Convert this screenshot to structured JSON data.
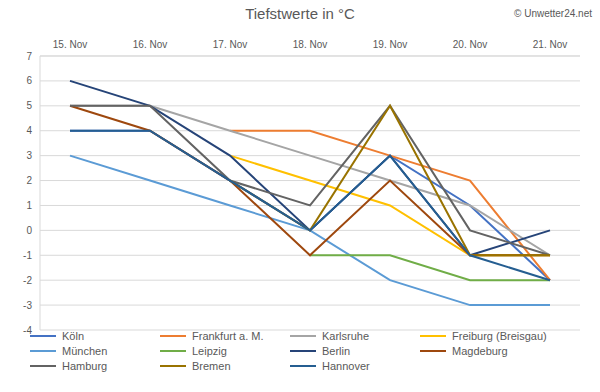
{
  "chart_data": {
    "type": "line",
    "title": "Tiefstwerte in °C",
    "source": "© Unwetter24.net",
    "categories": [
      "15. Nov",
      "16. Nov",
      "17. Nov",
      "18. Nov",
      "19. Nov",
      "20. Nov",
      "21. Nov"
    ],
    "ylim": [
      -4,
      7
    ],
    "yticks": [
      -4,
      -3,
      -2,
      -1,
      0,
      1,
      2,
      3,
      4,
      5,
      6,
      7
    ],
    "grid": true,
    "legend": "bottom",
    "series": [
      {
        "name": "Köln",
        "color": "#4472C4",
        "values": [
          4,
          4,
          2,
          0,
          3,
          1,
          -2
        ]
      },
      {
        "name": "Frankfurt a. M.",
        "color": "#ED7D31",
        "values": [
          null,
          null,
          4,
          4,
          3,
          2,
          -2
        ]
      },
      {
        "name": "Karlsruhe",
        "color": "#A5A5A5",
        "values": [
          5,
          5,
          4,
          3,
          2,
          1,
          -1
        ]
      },
      {
        "name": "Freiburg (Breisgau)",
        "color": "#FFC000",
        "values": [
          null,
          null,
          3,
          2,
          1,
          -1,
          -1
        ]
      },
      {
        "name": "München",
        "color": "#5B9BD5",
        "values": [
          3,
          2,
          1,
          0,
          -2,
          -3,
          -3
        ]
      },
      {
        "name": "Leipzig",
        "color": "#70AD47",
        "values": [
          null,
          null,
          null,
          -1,
          -1,
          -2,
          -2
        ]
      },
      {
        "name": "Berlin",
        "color": "#264478",
        "values": [
          6,
          5,
          3,
          0,
          3,
          -1,
          0
        ]
      },
      {
        "name": "Magdeburg",
        "color": "#9E480E",
        "values": [
          5,
          4,
          2,
          -1,
          2,
          -1,
          -1
        ]
      },
      {
        "name": "Hamburg",
        "color": "#636363",
        "values": [
          5,
          5,
          2,
          1,
          5,
          0,
          -1
        ]
      },
      {
        "name": "Bremen",
        "color": "#997300",
        "values": [
          null,
          null,
          2,
          0,
          5,
          -1,
          -1
        ]
      },
      {
        "name": "Hannover",
        "color": "#255E91",
        "values": [
          4,
          4,
          2,
          0,
          3,
          -1,
          -2
        ]
      }
    ]
  }
}
